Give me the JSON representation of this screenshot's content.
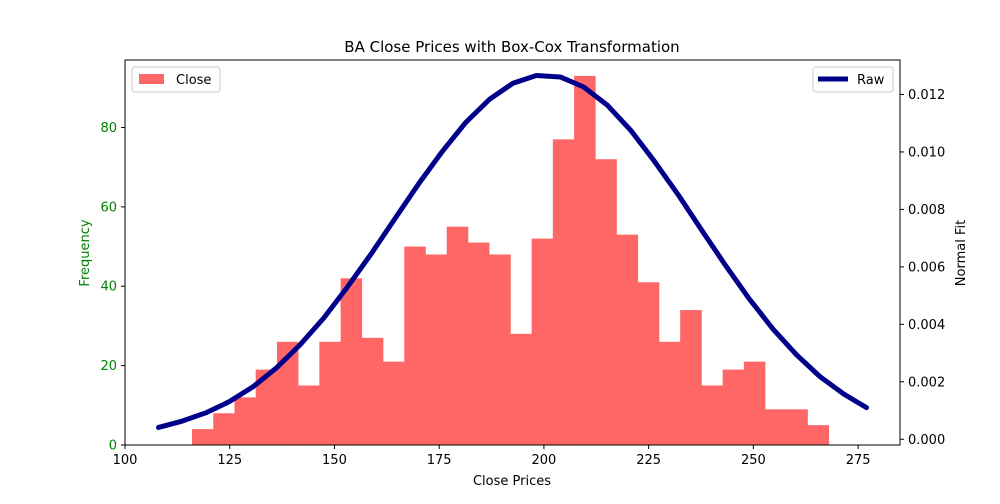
{
  "chart_data": {
    "type": "bar",
    "title": "BA Close Prices with Box-Cox Transformation",
    "xlabel": "Close Prices",
    "ylabel": "Frequency",
    "ylabel_right": "Normal Fit",
    "xlim": [
      100,
      285
    ],
    "ylim": [
      0,
      97
    ],
    "ylim_right": [
      -0.0002,
      0.0132
    ],
    "x_ticks": [
      "100",
      "125",
      "150",
      "175",
      "200",
      "225",
      "250",
      "275"
    ],
    "y_ticks": [
      "0",
      "20",
      "40",
      "60",
      "80"
    ],
    "y_ticks_right": [
      "0.000",
      "0.002",
      "0.004",
      "0.006",
      "0.008",
      "0.010",
      "0.012"
    ],
    "grid": false,
    "colors": {
      "bars": "#ff6666",
      "line": "#00008b",
      "left_axis": "#008000",
      "right_axis": "#000000"
    },
    "series": [
      {
        "name": "Close",
        "kind": "histogram",
        "bin_edges": [
          116.0,
          121.07,
          126.13,
          131.2,
          136.27,
          141.33,
          146.4,
          151.47,
          156.53,
          161.6,
          166.67,
          171.73,
          176.8,
          181.87,
          186.93,
          192.0,
          197.07,
          202.13,
          207.2,
          212.27,
          217.33,
          222.4,
          227.47,
          232.53,
          237.6,
          242.67,
          247.73,
          252.8,
          257.87,
          262.93,
          268.0
        ],
        "values": [
          4,
          8,
          12,
          19,
          26,
          15,
          26,
          42,
          27,
          21,
          50,
          48,
          55,
          51,
          48,
          28,
          52,
          77,
          93,
          72,
          53,
          41,
          26,
          34,
          15,
          19,
          21,
          9,
          9,
          5
        ]
      },
      {
        "name": "Raw",
        "kind": "line",
        "axis": "right",
        "x": [
          108,
          113.6,
          119.3,
          124.9,
          130.6,
          136.2,
          141.8,
          147.5,
          153.1,
          158.8,
          164.4,
          170.0,
          175.7,
          181.3,
          187.0,
          192.6,
          198.2,
          203.9,
          209.5,
          215.2,
          220.8,
          226.4,
          232.1,
          237.7,
          243.4,
          249.0,
          254.6,
          260.3,
          265.9,
          271.6,
          277
        ],
        "y": [
          0.00041,
          0.00063,
          0.00092,
          0.00131,
          0.00183,
          0.00249,
          0.00329,
          0.00423,
          0.0053,
          0.00646,
          0.00767,
          0.00887,
          0.01001,
          0.01102,
          0.01183,
          0.01239,
          0.01266,
          0.01261,
          0.01226,
          0.01162,
          0.01074,
          0.00967,
          0.0085,
          0.00727,
          0.00604,
          0.00489,
          0.00385,
          0.00294,
          0.00218,
          0.00157,
          0.0011
        ]
      }
    ],
    "legend": [
      {
        "label": "Close",
        "position": "top-left"
      },
      {
        "label": "Raw",
        "position": "top-right"
      }
    ]
  }
}
